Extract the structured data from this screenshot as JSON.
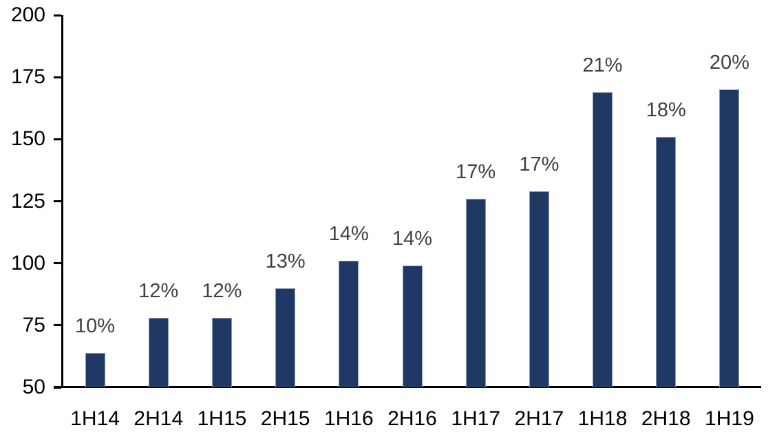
{
  "chart_data": {
    "type": "bar",
    "title": "",
    "xlabel": "",
    "ylabel": "",
    "categories": [
      "1H14",
      "2H14",
      "1H15",
      "2H15",
      "1H16",
      "2H16",
      "1H17",
      "2H17",
      "1H18",
      "2H18",
      "1H19"
    ],
    "values": [
      64,
      78,
      78,
      90,
      101,
      99,
      126,
      129,
      169,
      151,
      170
    ],
    "bar_labels": [
      "10%",
      "12%",
      "12%",
      "13%",
      "14%",
      "14%",
      "17%",
      "17%",
      "21%",
      "18%",
      "20%"
    ],
    "ylim": [
      50,
      200
    ],
    "yticks": [
      50,
      75,
      100,
      125,
      150,
      175,
      200
    ],
    "ytick_labels": [
      "50",
      "75",
      "100",
      "125",
      "150",
      "175",
      "200"
    ],
    "grid": false,
    "legend": "none",
    "colors": {
      "bar_fill": "#1F3864",
      "bar_border": "#8A9BB4",
      "bar_label_text": "#404040",
      "axis": "#000000",
      "tick_text": "#000000",
      "background": "#FFFFFF"
    }
  }
}
